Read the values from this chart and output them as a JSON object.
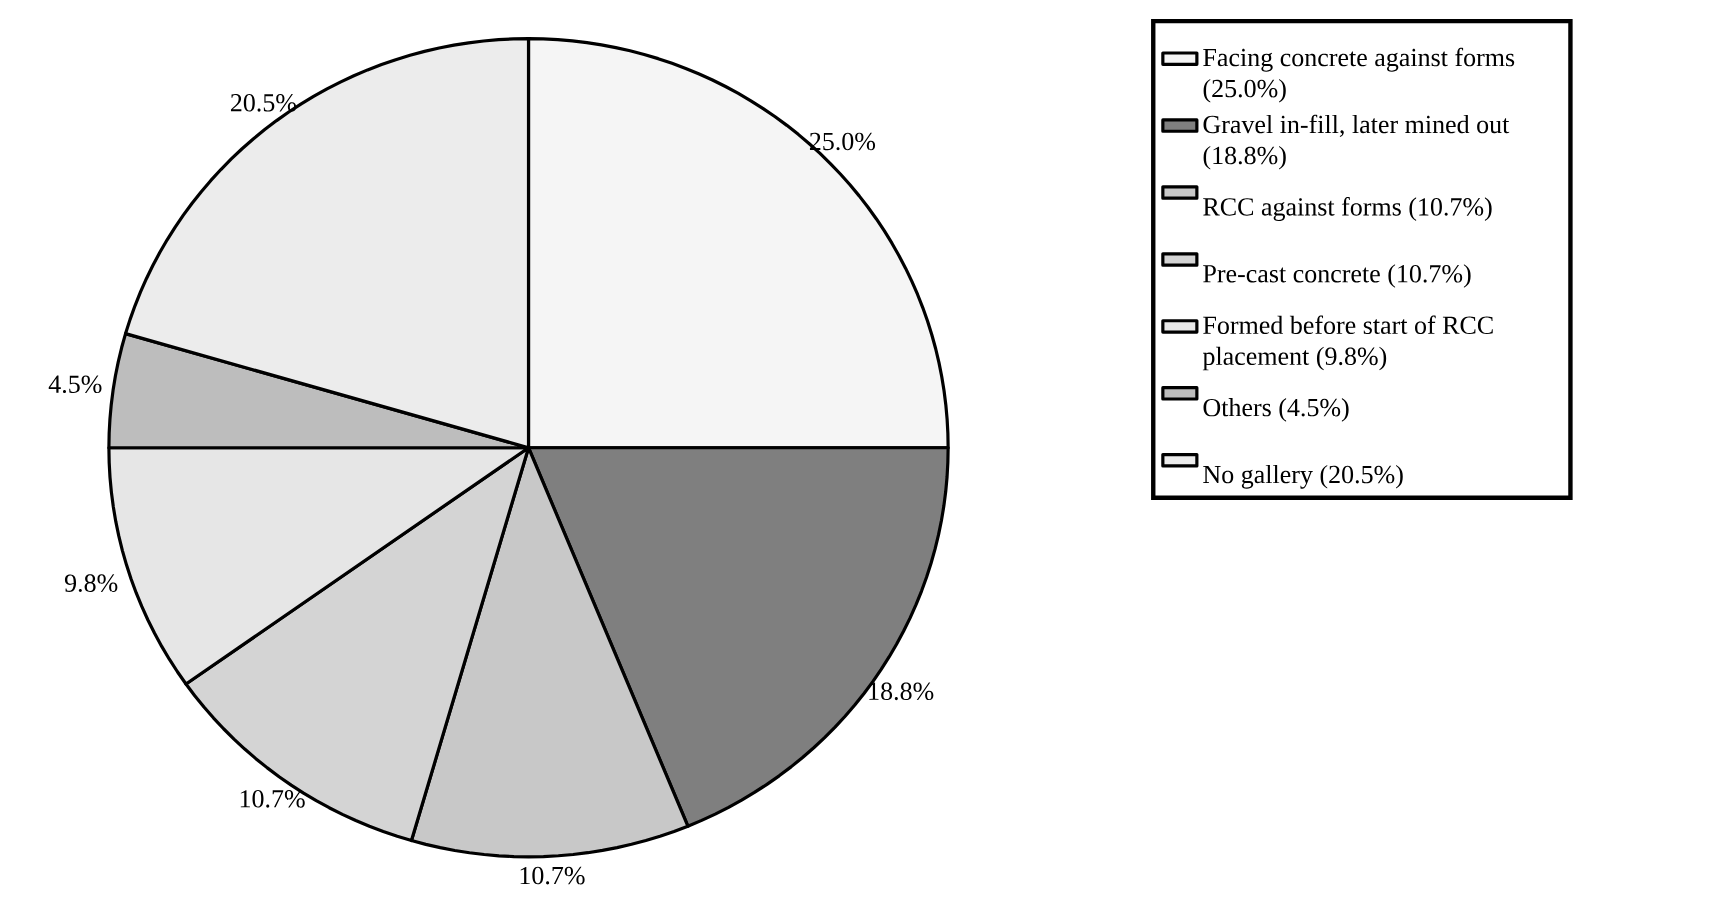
{
  "chart_data": {
    "type": "pie",
    "categories": [
      "Facing concrete against forms (25.0%)",
      "Gravel in-fill, later mined out (18.8%)",
      "RCC against forms (10.7%)",
      "Pre-cast concrete (10.7%)",
      "Formed before start of RCC placement (9.8%)",
      "Others (4.5%)",
      "No gallery (20.5%)"
    ],
    "values": [
      25.0,
      18.8,
      10.7,
      10.7,
      9.8,
      4.5,
      20.5
    ],
    "colors": [
      "#f5f5f5",
      "#7f7f7f",
      "#c8c8c8",
      "#d4d4d4",
      "#e6e6e6",
      "#bdbdbd",
      "#ececec"
    ],
    "value_labels": [
      "25.0%",
      "18.8%",
      "10.7%",
      "10.7%",
      "9.8%",
      "4.5%",
      "20.5%"
    ],
    "legend": "right"
  }
}
